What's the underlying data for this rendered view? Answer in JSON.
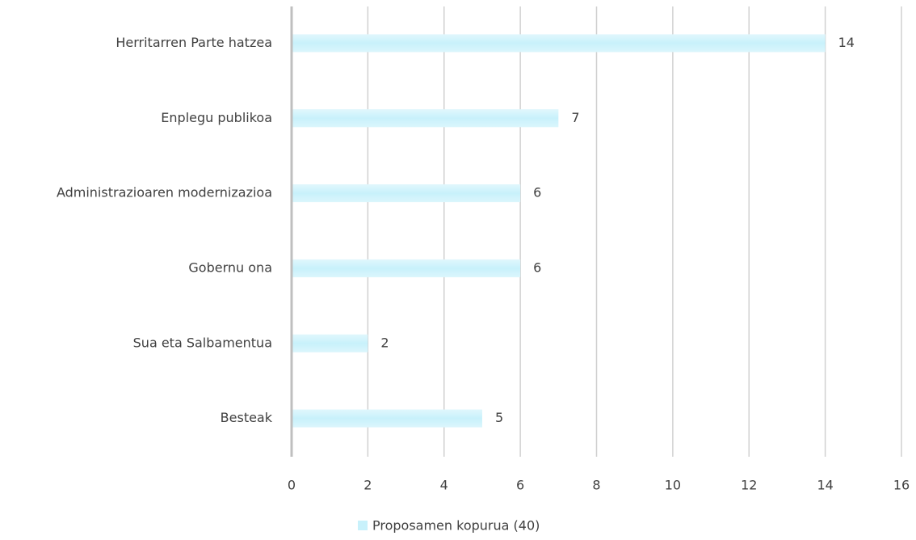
{
  "chart_data": {
    "type": "bar",
    "orientation": "horizontal",
    "categories": [
      "Herritarren Parte hatzea",
      "Enplegu publikoa",
      "Administrazioaren modernizazioa",
      "Gobernu ona",
      "Sua eta Salbamentua",
      "Besteak"
    ],
    "series": [
      {
        "name": "Proposamen kopurua (40)",
        "color": "#c8f1fb",
        "values": [
          14,
          7,
          6,
          6,
          2,
          5
        ]
      }
    ],
    "xlim": [
      0,
      16
    ],
    "xticks": [
      0,
      2,
      4,
      6,
      8,
      10,
      12,
      14,
      16
    ],
    "grid": true,
    "legend": "bottom"
  }
}
